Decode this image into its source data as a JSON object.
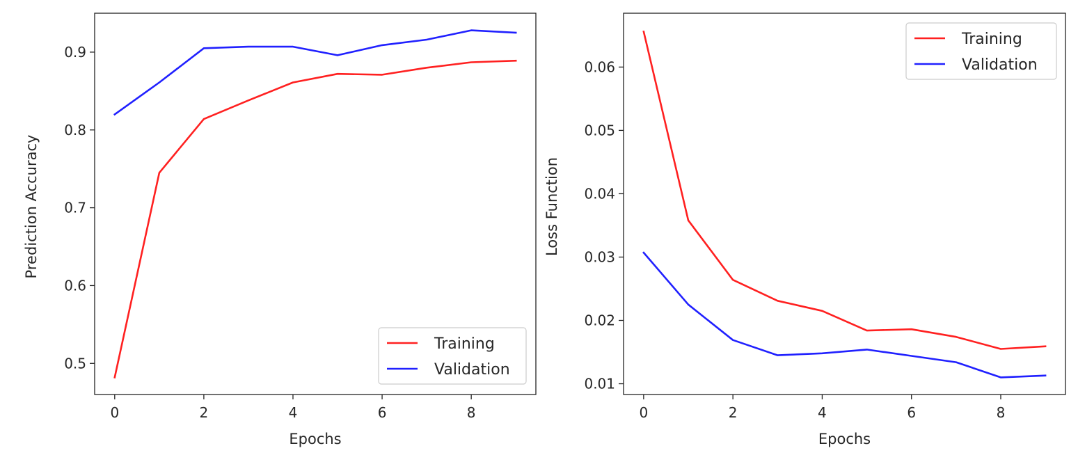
{
  "colors": {
    "training": "#ff2020",
    "validation": "#2020ff",
    "axes": "#222222",
    "background": "#ffffff"
  },
  "chart_data": [
    {
      "type": "line",
      "title": "",
      "xlabel": "Epochs",
      "ylabel": "Prediction Accuracy",
      "x": [
        0,
        1,
        2,
        3,
        4,
        5,
        6,
        7,
        8,
        9
      ],
      "xlim": [
        -0.45,
        9.45
      ],
      "ylim": [
        0.46,
        0.95
      ],
      "xticks": [
        0,
        2,
        4,
        6,
        8
      ],
      "yticks": [
        0.5,
        0.6,
        0.7,
        0.8,
        0.9
      ],
      "xtick_labels": [
        "0",
        "2",
        "4",
        "6",
        "8"
      ],
      "ytick_labels": [
        "0.5",
        "0.6",
        "0.7",
        "0.8",
        "0.9"
      ],
      "grid": false,
      "legend_position": "lower-right",
      "series": [
        {
          "name": "Training",
          "color": "#ff2020",
          "values": [
            0.482,
            0.745,
            0.814,
            0.838,
            0.861,
            0.872,
            0.871,
            0.88,
            0.887,
            0.889
          ]
        },
        {
          "name": "Validation",
          "color": "#2020ff",
          "values": [
            0.82,
            0.861,
            0.905,
            0.907,
            0.907,
            0.896,
            0.909,
            0.916,
            0.928,
            0.925
          ]
        }
      ]
    },
    {
      "type": "line",
      "title": "",
      "xlabel": "Epochs",
      "ylabel": "Loss Function",
      "x": [
        0,
        1,
        2,
        3,
        4,
        5,
        6,
        7,
        8,
        9
      ],
      "xlim": [
        -0.45,
        9.45
      ],
      "ylim": [
        0.0083,
        0.0685
      ],
      "xticks": [
        0,
        2,
        4,
        6,
        8
      ],
      "yticks": [
        0.01,
        0.02,
        0.03,
        0.04,
        0.05,
        0.06
      ],
      "xtick_labels": [
        "0",
        "2",
        "4",
        "6",
        "8"
      ],
      "ytick_labels": [
        "0.01",
        "0.02",
        "0.03",
        "0.04",
        "0.05",
        "0.06"
      ],
      "grid": false,
      "legend_position": "upper-right",
      "series": [
        {
          "name": "Training",
          "color": "#ff2020",
          "values": [
            0.0656,
            0.0358,
            0.0264,
            0.0231,
            0.0215,
            0.0184,
            0.0186,
            0.0174,
            0.0155,
            0.0159
          ]
        },
        {
          "name": "Validation",
          "color": "#2020ff",
          "values": [
            0.0307,
            0.0225,
            0.0169,
            0.0145,
            0.0148,
            0.0154,
            0.0144,
            0.0134,
            0.011,
            0.0113
          ]
        }
      ]
    }
  ]
}
